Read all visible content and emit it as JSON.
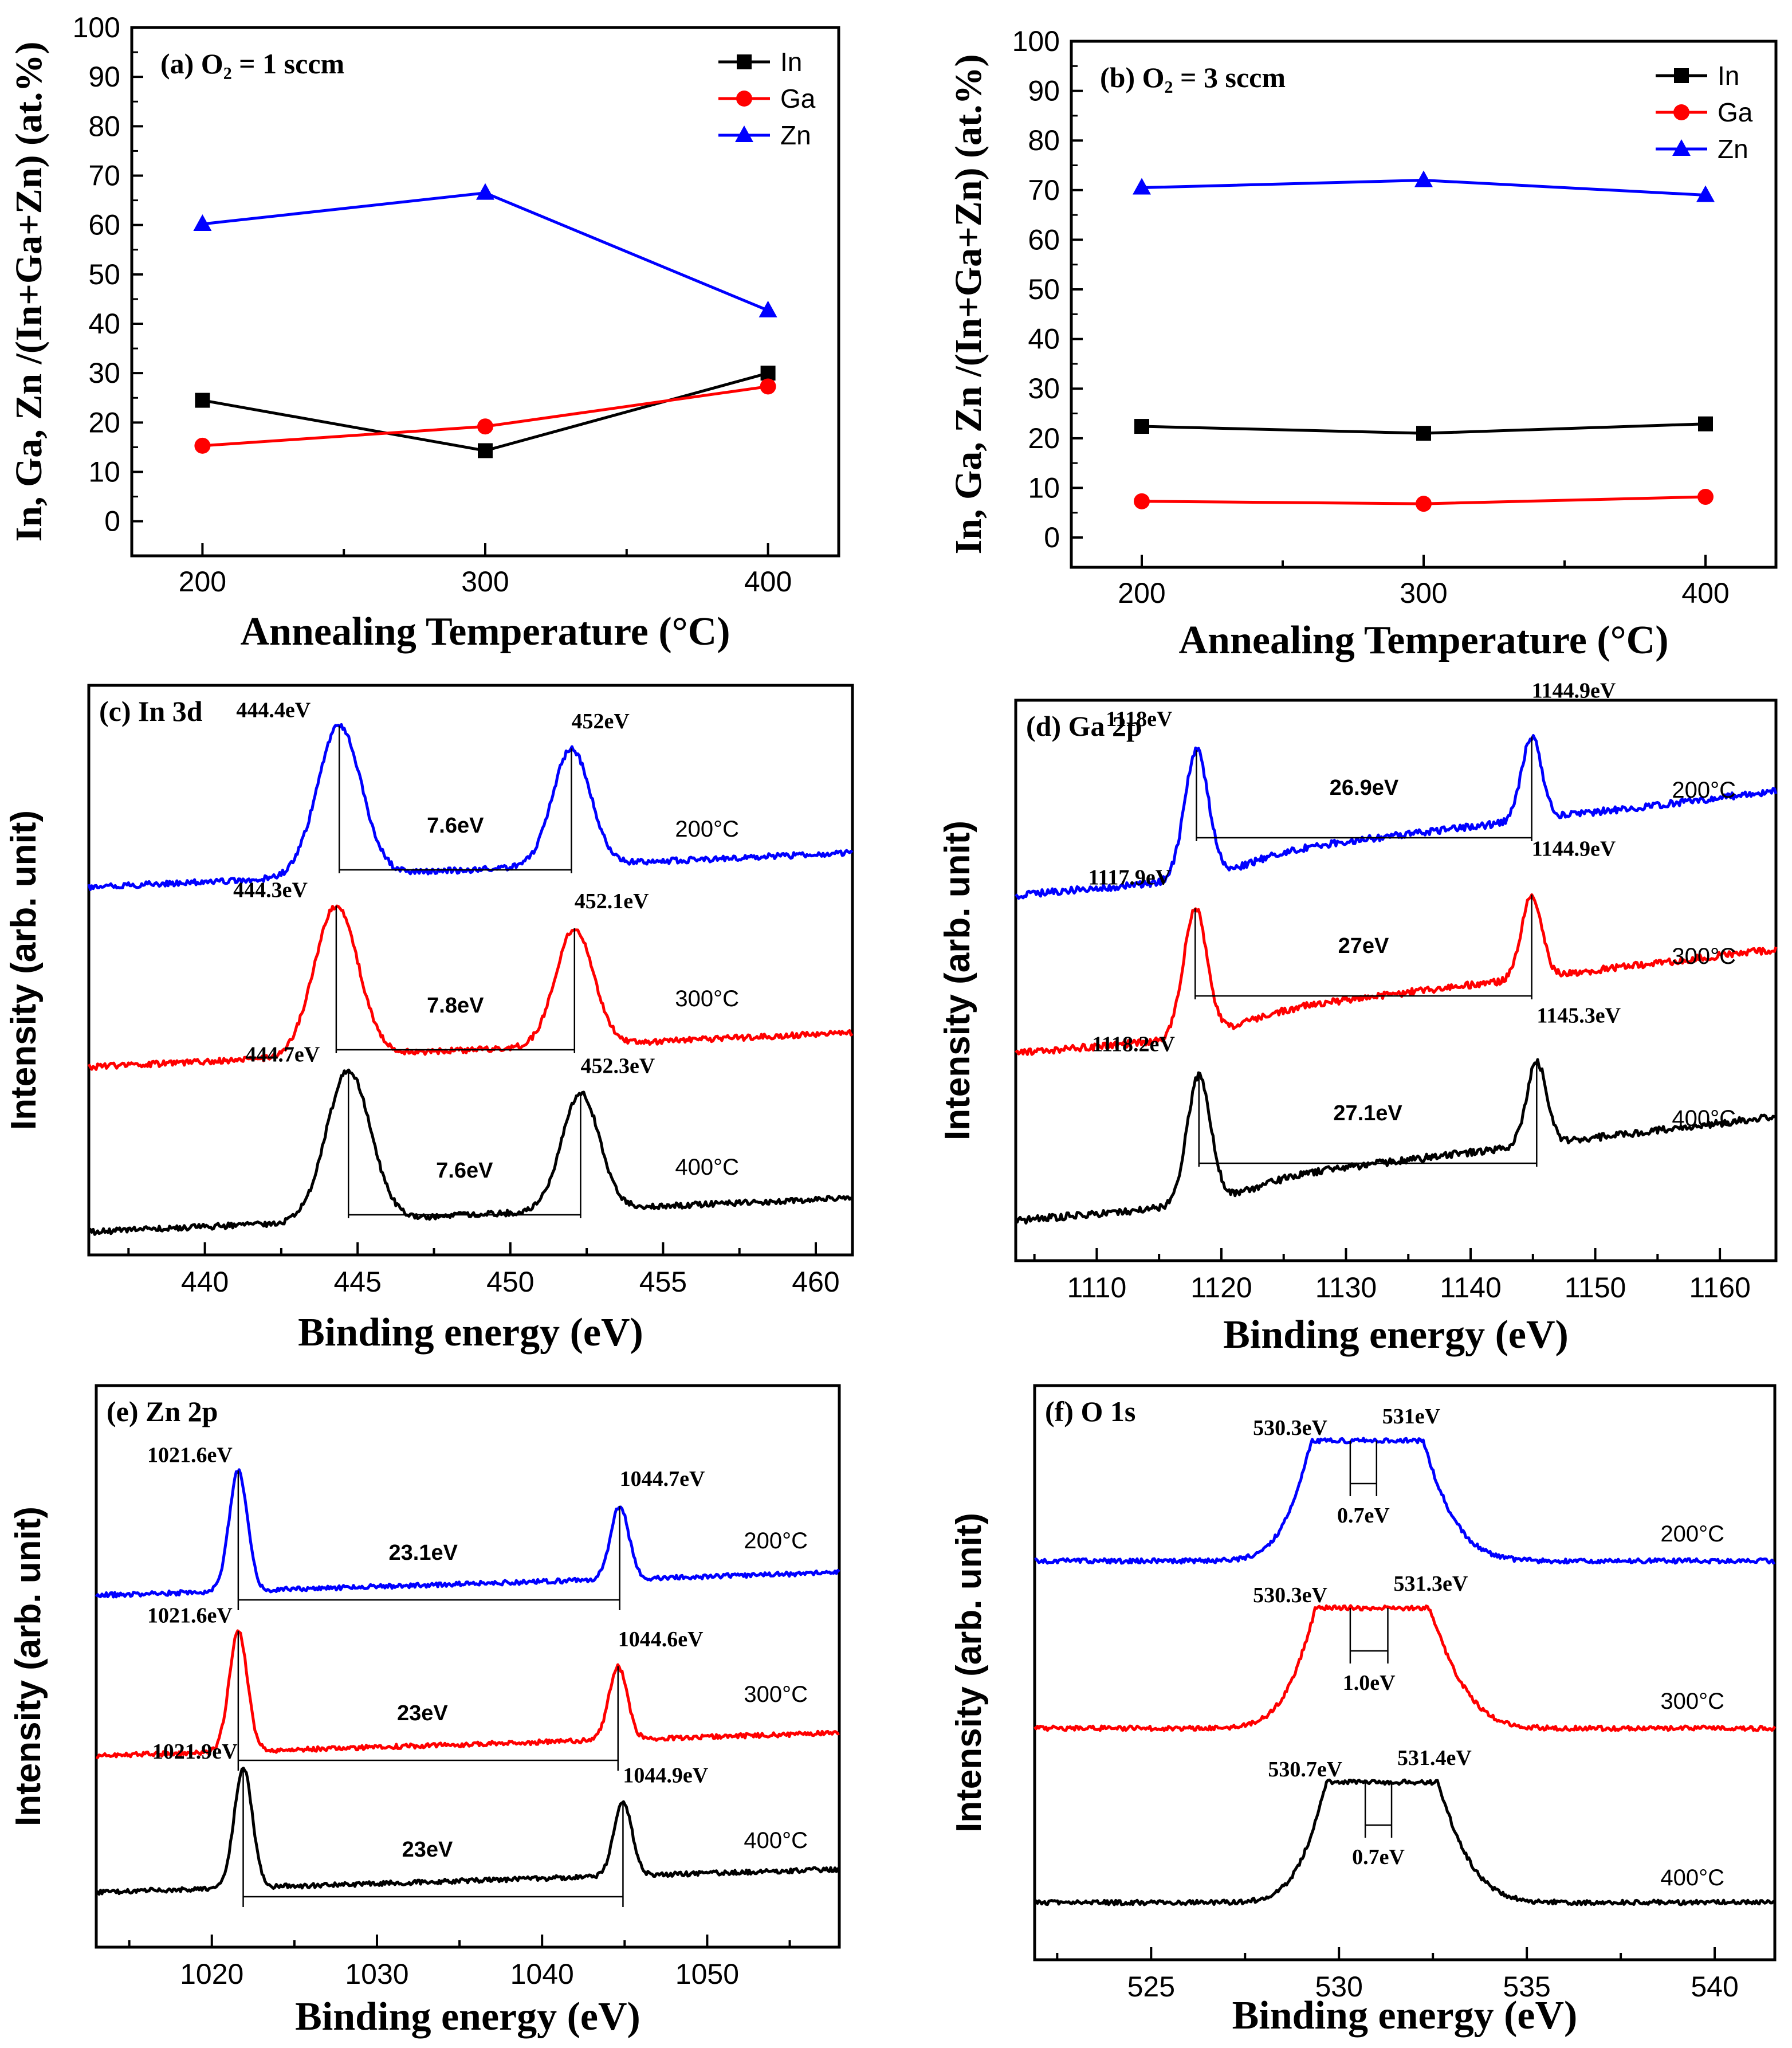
{
  "colors": {
    "In": "#000000",
    "Ga": "#ff0000",
    "Zn": "#0000ff",
    "s200": "#0000ff",
    "s300": "#ff0000",
    "s400": "#000000"
  },
  "chart_data": [
    {
      "id": "a",
      "type": "line",
      "title": "(a) O₂ = 1 sccm",
      "xlabel": "Annealing Temperature  (°C)",
      "ylabel": "In, Ga, Zn /(In+Ga+Zn) (at.%)",
      "x": [
        200,
        300,
        400
      ],
      "xlim": [
        175,
        425
      ],
      "ylim": [
        -7,
        100
      ],
      "xticks": [
        "200",
        "300",
        "400"
      ],
      "yticks": [
        "0",
        "10",
        "20",
        "30",
        "40",
        "50",
        "60",
        "70",
        "80",
        "90",
        "100"
      ],
      "legend_position": "top-right",
      "series": [
        {
          "name": "In",
          "marker": "square",
          "values": [
            24.5,
            14.3,
            30.0
          ]
        },
        {
          "name": "Ga",
          "marker": "circle",
          "values": [
            15.3,
            19.2,
            27.3
          ]
        },
        {
          "name": "Zn",
          "marker": "triangle",
          "values": [
            60.2,
            66.5,
            42.7
          ]
        }
      ]
    },
    {
      "id": "b",
      "type": "line",
      "title": "(b) O₂ = 3 sccm",
      "xlabel": "Annealing Temperature  (°C)",
      "ylabel": "In, Ga, Zn /(In+Ga+Zn) (at.%)",
      "x": [
        200,
        300,
        400
      ],
      "xlim": [
        175,
        425
      ],
      "ylim": [
        -6,
        100
      ],
      "xticks": [
        "200",
        "300",
        "400"
      ],
      "yticks": [
        "0",
        "10",
        "20",
        "30",
        "40",
        "50",
        "60",
        "70",
        "80",
        "90",
        "100"
      ],
      "legend_position": "top-right",
      "series": [
        {
          "name": "In",
          "marker": "square",
          "values": [
            22.4,
            21.0,
            22.9
          ]
        },
        {
          "name": "Ga",
          "marker": "circle",
          "values": [
            7.3,
            6.8,
            8.2
          ]
        },
        {
          "name": "Zn",
          "marker": "triangle",
          "values": [
            70.5,
            72.0,
            69.0
          ]
        }
      ]
    },
    {
      "id": "c",
      "type": "line",
      "title": "(c) In  3d",
      "xlabel": "Binding energy (eV)",
      "ylabel": "Intensity (arb. unit)",
      "xlim": [
        436.2,
        461.2
      ],
      "xticks": [
        440,
        445,
        450,
        455,
        460
      ],
      "series": [
        {
          "name": "200°C",
          "peaks": [
            444.4,
            452.0
          ],
          "sep": "7.6eV",
          "labels": [
            "444.4eV",
            "452eV"
          ]
        },
        {
          "name": "300°C",
          "peaks": [
            444.3,
            452.1
          ],
          "sep": "7.8eV",
          "labels": [
            "444.3eV",
            "452.1eV"
          ]
        },
        {
          "name": "400°C",
          "peaks": [
            444.7,
            452.3
          ],
          "sep": "7.6eV",
          "labels": [
            "444.7eV",
            "452.3eV"
          ]
        }
      ]
    },
    {
      "id": "d",
      "type": "line",
      "title": "(d) Ga  2p",
      "xlabel": "Binding energy (eV)",
      "ylabel": "Intensity (arb. unit)",
      "xlim": [
        1103.5,
        1164.5
      ],
      "xticks": [
        1110,
        1120,
        1130,
        1140,
        1150,
        1160
      ],
      "series": [
        {
          "name": "200°C",
          "peaks": [
            1118.0,
            1144.9
          ],
          "sep": "26.9eV",
          "labels": [
            "1118eV",
            "1144.9eV"
          ]
        },
        {
          "name": "300°C",
          "peaks": [
            1117.9,
            1144.9
          ],
          "sep": "27eV",
          "labels": [
            "1117.9eV",
            "1144.9eV"
          ]
        },
        {
          "name": "400°C",
          "peaks": [
            1118.2,
            1145.3
          ],
          "sep": "27.1eV",
          "labels": [
            "1118.2eV",
            "1145.3eV"
          ]
        }
      ]
    },
    {
      "id": "e",
      "type": "line",
      "title": "(e) Zn  2p",
      "xlabel": "Binding energy (eV)",
      "ylabel": "Intensity (arb. unit)",
      "xlim": [
        1013.0,
        1058.0
      ],
      "xticks": [
        1020,
        1030,
        1040,
        1050
      ],
      "series": [
        {
          "name": "200°C",
          "peaks": [
            1021.6,
            1044.7
          ],
          "sep": "23.1eV",
          "labels": [
            "1021.6eV",
            "1044.7eV"
          ]
        },
        {
          "name": "300°C",
          "peaks": [
            1021.6,
            1044.6
          ],
          "sep": "23eV",
          "labels": [
            "1021.6eV",
            "1044.6eV"
          ]
        },
        {
          "name": "400°C",
          "peaks": [
            1021.9,
            1044.9
          ],
          "sep": "23eV",
          "labels": [
            "1021.9eV",
            "1044.9eV"
          ]
        }
      ]
    },
    {
      "id": "f",
      "type": "line",
      "title": "(f) O  1s",
      "xlabel": "Binding energy (eV)",
      "ylabel": "Intensity (arb. unit)",
      "xlim": [
        521.9,
        541.6
      ],
      "xticks": [
        525,
        530,
        535,
        540
      ],
      "series": [
        {
          "name": "200°C",
          "peaks": [
            530.3,
            531.0
          ],
          "sep": "0.7eV",
          "labels": [
            "530.3eV",
            "531eV"
          ]
        },
        {
          "name": "300°C",
          "peaks": [
            530.3,
            531.3
          ],
          "sep": "1.0eV",
          "labels": [
            "530.3eV",
            "531.3eV"
          ]
        },
        {
          "name": "400°C",
          "peaks": [
            530.7,
            531.4
          ],
          "sep": "0.7eV",
          "labels": [
            "530.7eV",
            "531.4eV"
          ]
        }
      ]
    }
  ]
}
